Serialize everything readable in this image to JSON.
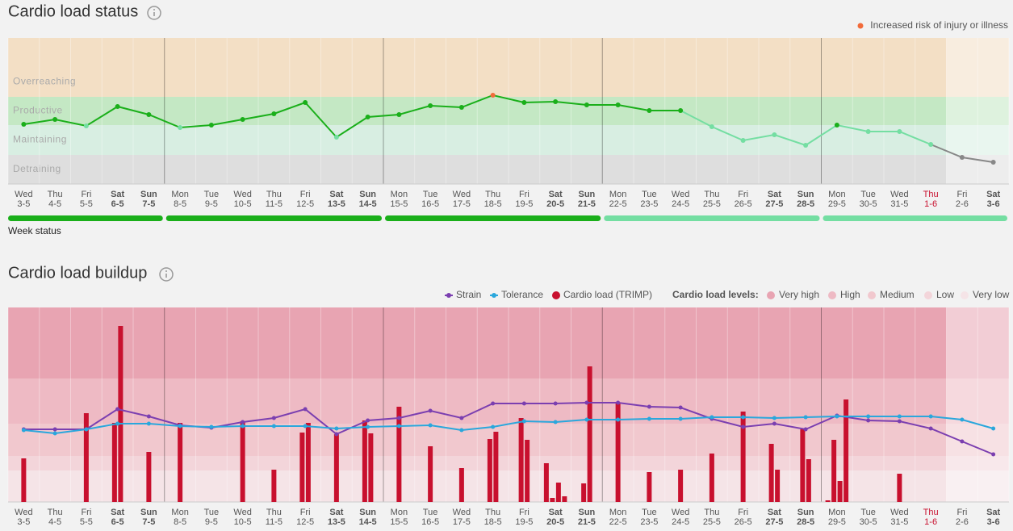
{
  "chart_data": [
    {
      "type": "line",
      "title": "Cardio load status",
      "weekdays": [
        "Wed",
        "Thu",
        "Fri",
        "Sat",
        "Sun",
        "Mon",
        "Tue",
        "Wed",
        "Thu",
        "Fri",
        "Sat",
        "Sun",
        "Mon",
        "Tue",
        "Wed",
        "Thu",
        "Fri",
        "Sat",
        "Sun",
        "Mon",
        "Tue",
        "Wed",
        "Thu",
        "Fri",
        "Sat",
        "Sun",
        "Mon",
        "Tue",
        "Wed",
        "Thu",
        "Fri",
        "Sat"
      ],
      "categories": [
        "3-5",
        "4-5",
        "5-5",
        "6-5",
        "7-5",
        "8-5",
        "9-5",
        "10-5",
        "11-5",
        "12-5",
        "13-5",
        "14-5",
        "15-5",
        "16-5",
        "17-5",
        "18-5",
        "19-5",
        "20-5",
        "21-5",
        "22-5",
        "23-5",
        "24-5",
        "25-5",
        "26-5",
        "27-5",
        "28-5",
        "29-5",
        "30-5",
        "31-5",
        "1-6",
        "2-6",
        "3-6"
      ],
      "zones": [
        {
          "name": "Overreaching",
          "from": 108,
          "to": 181,
          "color": "#f3dfc5",
          "point_color": "#f26b3a"
        },
        {
          "name": "Productive",
          "from": 73,
          "to": 108,
          "color": "#c4e8c4",
          "point_color": "#1aaf1a"
        },
        {
          "name": "Maintaining",
          "from": 36,
          "to": 73,
          "color": "#d8eee2",
          "point_color": "#74dea2"
        },
        {
          "name": "Detraining",
          "from": 0,
          "to": 36,
          "color": "#dedede",
          "point_color": "#888888"
        }
      ],
      "legend": {
        "label": "Increased risk of injury or illness",
        "color": "#f26b3a"
      },
      "ylim": [
        0,
        181
      ],
      "series": [
        {
          "values": [
            74,
            80,
            72,
            96,
            86,
            70,
            73,
            80,
            87,
            101,
            58,
            83,
            86,
            97,
            95,
            110,
            101,
            102,
            98,
            98,
            91,
            91,
            71,
            54,
            61,
            48,
            73,
            65,
            65,
            49,
            33,
            27
          ]
        }
      ],
      "week_status": {
        "label": "Week status",
        "colors": [
          "#1aaf1a",
          "#1aaf1a",
          "#1aaf1a",
          "#74dea2",
          "#74dea2"
        ]
      }
    },
    {
      "type": "combo",
      "title": "Cardio load buildup",
      "weekdays": [
        "Wed",
        "Thu",
        "Fri",
        "Sat",
        "Sun",
        "Mon",
        "Tue",
        "Wed",
        "Thu",
        "Fri",
        "Sat",
        "Sun",
        "Mon",
        "Tue",
        "Wed",
        "Thu",
        "Fri",
        "Sat",
        "Sun",
        "Mon",
        "Tue",
        "Wed",
        "Thu",
        "Fri",
        "Sat",
        "Sun",
        "Mon",
        "Tue",
        "Wed",
        "Thu",
        "Fri",
        "Sat"
      ],
      "categories": [
        "3-5",
        "4-5",
        "5-5",
        "6-5",
        "7-5",
        "8-5",
        "9-5",
        "10-5",
        "11-5",
        "12-5",
        "13-5",
        "14-5",
        "15-5",
        "16-5",
        "17-5",
        "18-5",
        "19-5",
        "20-5",
        "21-5",
        "22-5",
        "23-5",
        "24-5",
        "25-5",
        "26-5",
        "27-5",
        "28-5",
        "29-5",
        "30-5",
        "31-5",
        "1-6",
        "2-6",
        "3-6"
      ],
      "ylim": [
        0,
        241
      ],
      "levels_label": "Cardio load levels:",
      "levels": [
        {
          "name": "Very high",
          "from": 153,
          "to": 241,
          "color": "#e8a4b2"
        },
        {
          "name": "High",
          "from": 97,
          "to": 153,
          "color": "#eebac4"
        },
        {
          "name": "Medium",
          "from": 57,
          "to": 97,
          "color": "#f1c8ce"
        },
        {
          "name": "Low",
          "from": 39,
          "to": 57,
          "color": "#f3d5da"
        },
        {
          "name": "Very low",
          "from": 0,
          "to": 39,
          "color": "#f5e4e7"
        }
      ],
      "series": [
        {
          "name": "Strain",
          "color": "#7b3fb0",
          "values": [
            90,
            90,
            90,
            115,
            106,
            95,
            92,
            99,
            104,
            115,
            84,
            101,
            104,
            113,
            104,
            122,
            122,
            122,
            123,
            123,
            118,
            117,
            103,
            93,
            97,
            90,
            107,
            101,
            100,
            91,
            75,
            59
          ]
        },
        {
          "name": "Tolerance",
          "color": "#2aa7dc",
          "values": [
            89,
            85,
            90,
            97,
            97,
            94,
            93,
            94,
            94,
            94,
            91,
            93,
            94,
            95,
            89,
            93,
            100,
            99,
            102,
            102,
            103,
            103,
            105,
            105,
            104,
            105,
            106,
            106,
            106,
            106,
            102,
            91
          ]
        },
        {
          "name": "Cardio load (TRIMP)",
          "color": "#c8102e",
          "values": [
            [
              54
            ],
            [],
            [
              110
            ],
            [
              98,
              218
            ],
            [
              62
            ],
            [
              98
            ],
            [],
            [
              100
            ],
            [
              40
            ],
            [
              86,
              98
            ],
            [
              84
            ],
            [
              101,
              85
            ],
            [
              118
            ],
            [
              69
            ],
            [
              42
            ],
            [
              78,
              87
            ],
            [
              104,
              77
            ],
            [
              48,
              5,
              24,
              7
            ],
            [
              23,
              168
            ],
            [
              122
            ],
            [
              37
            ],
            [
              40
            ],
            [
              60
            ],
            [
              112
            ],
            [
              72,
              40
            ],
            [
              90,
              53
            ],
            [
              2,
              77,
              26,
              127
            ],
            [],
            [
              35
            ],
            [],
            [],
            []
          ]
        }
      ]
    }
  ]
}
